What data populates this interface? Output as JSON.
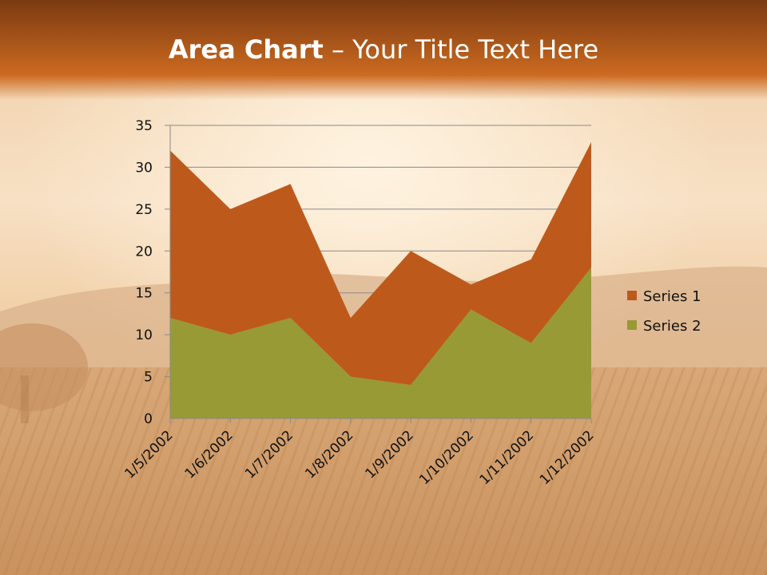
{
  "slide": {
    "title_bold": "Area Chart",
    "title_rest": " – Your Title Text Here"
  },
  "colors": {
    "title_bar_top": "#7a3a10",
    "title_bar_bottom": "#cc6a20",
    "series1": "#bd5a1b",
    "series2": "#989a35",
    "gridline": "#8a8a8a"
  },
  "chart_data": {
    "type": "area",
    "stacked": true,
    "categories": [
      "1/5/2002",
      "1/6/2002",
      "1/7/2002",
      "1/8/2002",
      "1/9/2002",
      "1/10/2002",
      "1/11/2002",
      "1/12/2002"
    ],
    "series": [
      {
        "name": "Series 1",
        "values": [
          20,
          15,
          16,
          7,
          16,
          3,
          10,
          15
        ]
      },
      {
        "name": "Series 2",
        "values": [
          12,
          10,
          12,
          5,
          4,
          13,
          9,
          18
        ]
      }
    ],
    "ylim": [
      0,
      35
    ],
    "yticks": [
      0,
      5,
      10,
      15,
      20,
      25,
      30,
      35
    ],
    "grid": true,
    "legend_position": "right"
  }
}
